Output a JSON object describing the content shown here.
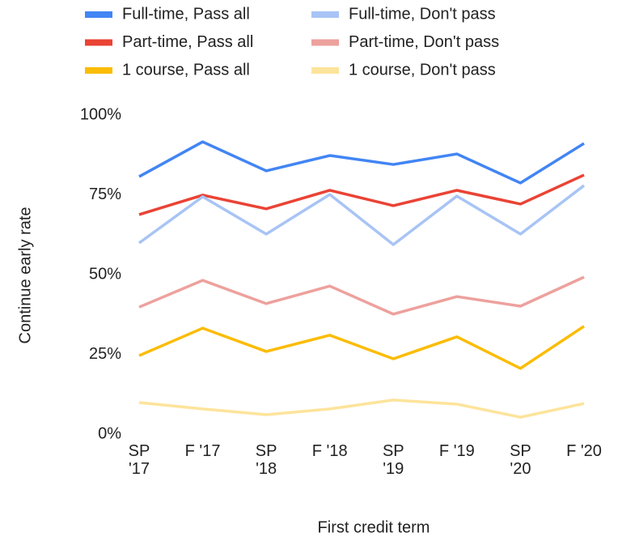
{
  "chart_data": {
    "type": "line",
    "y_axis_label": "Continue early rate",
    "x_axis_label": "First credit term",
    "categories": [
      "SP '17",
      "F '17",
      "SP '18",
      "F '18",
      "SP '19",
      "F '19",
      "SP '20",
      "F '20"
    ],
    "series": [
      {
        "name": "Full-time, Pass all",
        "color": "#4285f4",
        "values": [
          80.7,
          91.6,
          82.5,
          87.3,
          84.5,
          87.8,
          78.7,
          91.1
        ]
      },
      {
        "name": "Part-time, Pass all",
        "color": "#ea4335",
        "values": [
          68.8,
          74.9,
          70.6,
          76.4,
          71.6,
          76.4,
          72.1,
          81.2
        ]
      },
      {
        "name": "1 course, Pass all",
        "color": "#fbbc04",
        "values": [
          24.6,
          33.2,
          25.9,
          31.0,
          23.6,
          30.5,
          20.6,
          33.8
        ]
      },
      {
        "name": "Full-time, Don't pass",
        "color": "#a8c4f5",
        "values": [
          59.9,
          74.4,
          62.7,
          75.1,
          59.4,
          74.6,
          62.7,
          77.9
        ]
      },
      {
        "name": "Part-time, Don't pass",
        "color": "#eda19d",
        "values": [
          39.8,
          48.2,
          40.9,
          46.4,
          37.6,
          43.1,
          40.1,
          49.2
        ]
      },
      {
        "name": "1 course, Don't pass",
        "color": "#fde49b",
        "values": [
          9.9,
          7.9,
          6.1,
          7.9,
          10.7,
          9.4,
          5.3,
          9.6
        ]
      }
    ],
    "ylim": [
      0,
      100
    ],
    "yticks": [
      {
        "value": 0,
        "label": "0%"
      },
      {
        "value": 25,
        "label": "25%"
      },
      {
        "value": 50,
        "label": "50%"
      },
      {
        "value": 75,
        "label": "75%"
      },
      {
        "value": 100,
        "label": "100%"
      }
    ],
    "grid": false,
    "legend_position": "top"
  }
}
